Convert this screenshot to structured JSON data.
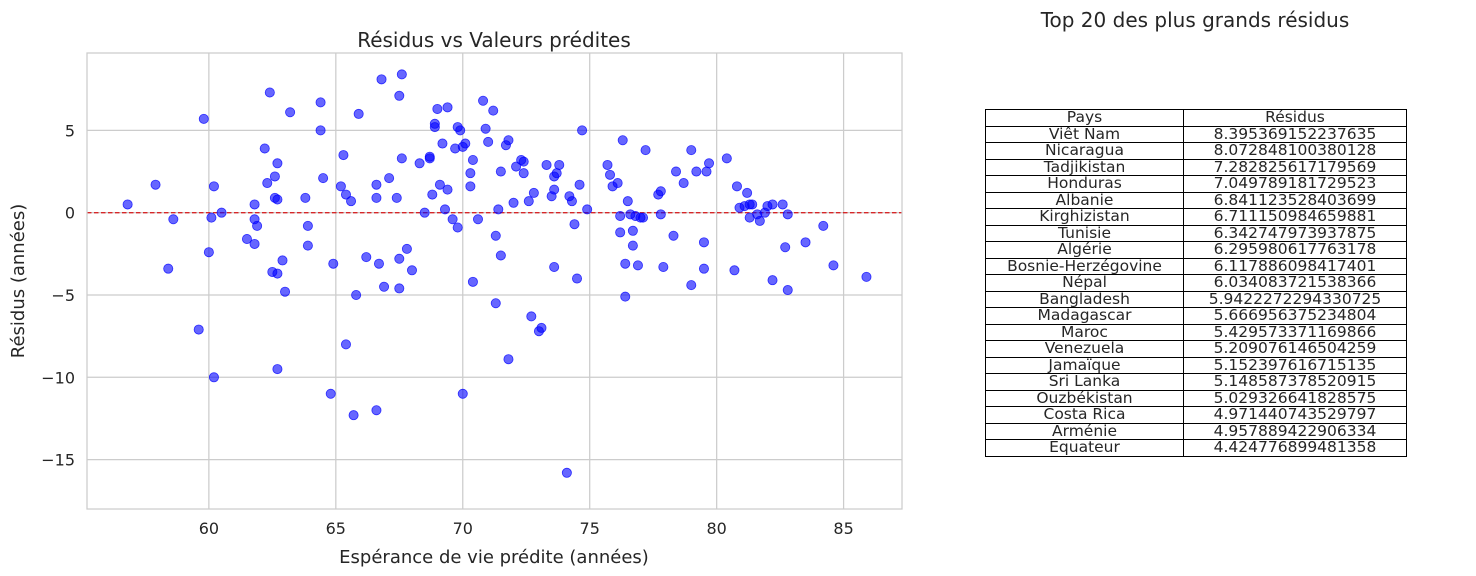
{
  "chart_data": [
    {
      "type": "scatter",
      "title": "Résidus vs Valeurs prédites",
      "xlabel": "Espérance de vie prédite (années)",
      "ylabel": "Résidus (années)",
      "xlim": [
        55.2,
        87.3
      ],
      "ylim": [
        -18.0,
        9.7
      ],
      "xticks": [
        60,
        65,
        70,
        75,
        80,
        85
      ],
      "yticks": [
        5,
        0,
        -5,
        -10,
        -15
      ],
      "ytick_labels": [
        "5",
        "0",
        "−5",
        "−10",
        "−15"
      ],
      "grid": true,
      "point_color": "#0000ff",
      "reference_line": {
        "y": 0,
        "color": "#d62728",
        "style": "dashed"
      },
      "points": [
        [
          56.8,
          0.5
        ],
        [
          57.9,
          1.7
        ],
        [
          58.4,
          -3.4
        ],
        [
          58.6,
          -0.4
        ],
        [
          59.6,
          -7.1
        ],
        [
          59.8,
          5.7
        ],
        [
          60.0,
          -2.4
        ],
        [
          60.1,
          -0.3
        ],
        [
          60.2,
          1.6
        ],
        [
          60.2,
          -10.0
        ],
        [
          60.5,
          0.0
        ],
        [
          61.5,
          -1.6
        ],
        [
          61.8,
          0.5
        ],
        [
          61.8,
          -0.4
        ],
        [
          61.8,
          -1.9
        ],
        [
          61.9,
          -0.8
        ],
        [
          62.2,
          3.9
        ],
        [
          62.3,
          1.8
        ],
        [
          62.4,
          7.3
        ],
        [
          62.5,
          -3.6
        ],
        [
          62.6,
          2.2
        ],
        [
          62.6,
          0.9
        ],
        [
          62.7,
          0.8
        ],
        [
          62.7,
          3.0
        ],
        [
          62.7,
          -3.7
        ],
        [
          62.7,
          -9.5
        ],
        [
          62.9,
          -2.9
        ],
        [
          63.0,
          -4.8
        ],
        [
          63.2,
          6.1
        ],
        [
          63.8,
          0.9
        ],
        [
          63.9,
          -0.8
        ],
        [
          63.9,
          -2.0
        ],
        [
          64.4,
          6.7
        ],
        [
          64.4,
          5.0
        ],
        [
          64.5,
          2.1
        ],
        [
          64.8,
          -11.0
        ],
        [
          64.9,
          -3.1
        ],
        [
          65.2,
          1.6
        ],
        [
          65.3,
          3.5
        ],
        [
          65.4,
          1.1
        ],
        [
          65.4,
          -8.0
        ],
        [
          65.6,
          0.7
        ],
        [
          65.7,
          -12.3
        ],
        [
          65.8,
          -5.0
        ],
        [
          65.9,
          6.0
        ],
        [
          66.2,
          -2.7
        ],
        [
          66.6,
          1.7
        ],
        [
          66.6,
          0.9
        ],
        [
          66.6,
          -12.0
        ],
        [
          66.7,
          -3.1
        ],
        [
          66.8,
          8.1
        ],
        [
          66.9,
          -4.5
        ],
        [
          67.1,
          2.1
        ],
        [
          67.4,
          0.9
        ],
        [
          67.5,
          -2.8
        ],
        [
          67.5,
          -4.6
        ],
        [
          67.5,
          7.1
        ],
        [
          67.6,
          8.4
        ],
        [
          67.6,
          3.3
        ],
        [
          67.8,
          -2.2
        ],
        [
          68.0,
          -3.5
        ],
        [
          68.3,
          3.0
        ],
        [
          68.5,
          0.0
        ],
        [
          68.7,
          3.4
        ],
        [
          68.7,
          3.3
        ],
        [
          68.8,
          1.1
        ],
        [
          68.9,
          5.2
        ],
        [
          68.9,
          5.4
        ],
        [
          69.0,
          6.3
        ],
        [
          69.1,
          1.7
        ],
        [
          69.2,
          4.2
        ],
        [
          69.3,
          0.2
        ],
        [
          69.4,
          6.4
        ],
        [
          69.4,
          1.4
        ],
        [
          69.6,
          -0.4
        ],
        [
          69.7,
          3.9
        ],
        [
          69.8,
          -0.9
        ],
        [
          69.8,
          5.2
        ],
        [
          69.9,
          5.0
        ],
        [
          70.0,
          -11.0
        ],
        [
          70.0,
          4.0
        ],
        [
          70.1,
          4.2
        ],
        [
          70.3,
          1.6
        ],
        [
          70.3,
          2.4
        ],
        [
          70.4,
          3.2
        ],
        [
          70.4,
          -4.2
        ],
        [
          70.6,
          -0.4
        ],
        [
          70.8,
          6.8
        ],
        [
          70.9,
          5.1
        ],
        [
          71.0,
          4.3
        ],
        [
          71.2,
          6.2
        ],
        [
          71.3,
          -5.5
        ],
        [
          71.3,
          -1.4
        ],
        [
          71.4,
          0.2
        ],
        [
          71.5,
          2.5
        ],
        [
          71.5,
          -2.6
        ],
        [
          71.7,
          4.1
        ],
        [
          71.8,
          4.4
        ],
        [
          71.8,
          -8.9
        ],
        [
          72.0,
          0.6
        ],
        [
          72.1,
          2.8
        ],
        [
          72.3,
          3.2
        ],
        [
          72.4,
          3.1
        ],
        [
          72.4,
          2.4
        ],
        [
          72.6,
          0.7
        ],
        [
          72.7,
          -6.3
        ],
        [
          72.8,
          1.2
        ],
        [
          73.0,
          -7.2
        ],
        [
          73.1,
          -7.0
        ],
        [
          73.3,
          2.9
        ],
        [
          73.5,
          1.0
        ],
        [
          73.6,
          -3.3
        ],
        [
          73.6,
          1.4
        ],
        [
          73.6,
          2.2
        ],
        [
          73.7,
          2.4
        ],
        [
          73.8,
          2.9
        ],
        [
          74.1,
          -15.8
        ],
        [
          74.2,
          1.0
        ],
        [
          74.3,
          0.7
        ],
        [
          74.4,
          -0.7
        ],
        [
          74.5,
          -4.0
        ],
        [
          74.6,
          1.7
        ],
        [
          74.7,
          5.0
        ],
        [
          74.9,
          0.2
        ],
        [
          75.7,
          2.9
        ],
        [
          75.8,
          2.3
        ],
        [
          75.9,
          1.6
        ],
        [
          76.1,
          1.8
        ],
        [
          76.2,
          -0.2
        ],
        [
          76.2,
          -1.2
        ],
        [
          76.3,
          4.4
        ],
        [
          76.4,
          -5.1
        ],
        [
          76.4,
          -3.1
        ],
        [
          76.5,
          0.7
        ],
        [
          76.6,
          -0.1
        ],
        [
          76.7,
          -1.1
        ],
        [
          76.7,
          -2.0
        ],
        [
          76.8,
          -0.2
        ],
        [
          76.9,
          -3.2
        ],
        [
          77.0,
          -0.3
        ],
        [
          77.1,
          -0.3
        ],
        [
          77.2,
          3.8
        ],
        [
          77.7,
          1.1
        ],
        [
          77.8,
          1.3
        ],
        [
          77.8,
          -0.1
        ],
        [
          77.9,
          -3.3
        ],
        [
          78.3,
          -1.4
        ],
        [
          78.4,
          2.5
        ],
        [
          78.7,
          1.8
        ],
        [
          79.0,
          3.8
        ],
        [
          79.0,
          -4.4
        ],
        [
          79.2,
          2.5
        ],
        [
          79.5,
          -3.4
        ],
        [
          79.5,
          -1.8
        ],
        [
          79.6,
          2.5
        ],
        [
          79.7,
          3.0
        ],
        [
          80.4,
          3.3
        ],
        [
          80.7,
          -3.5
        ],
        [
          80.8,
          1.6
        ],
        [
          80.9,
          0.3
        ],
        [
          81.1,
          0.4
        ],
        [
          81.2,
          1.2
        ],
        [
          81.3,
          0.5
        ],
        [
          81.3,
          -0.3
        ],
        [
          81.4,
          0.5
        ],
        [
          81.6,
          -0.1
        ],
        [
          81.7,
          -0.5
        ],
        [
          81.9,
          0.0
        ],
        [
          82.0,
          0.4
        ],
        [
          82.2,
          -4.1
        ],
        [
          82.2,
          0.5
        ],
        [
          82.6,
          0.5
        ],
        [
          82.7,
          -2.1
        ],
        [
          82.8,
          -0.1
        ],
        [
          82.8,
          -4.7
        ],
        [
          83.5,
          -1.8
        ],
        [
          84.2,
          -0.8
        ],
        [
          84.6,
          -3.2
        ],
        [
          85.9,
          -3.9
        ]
      ]
    },
    {
      "type": "table",
      "title": "Top 20 des plus grands résidus",
      "columns": [
        "Pays",
        "Résidus"
      ],
      "rows": [
        [
          "Viêt Nam",
          "8.395369152237635"
        ],
        [
          "Nicaragua",
          "8.072848100380128"
        ],
        [
          "Tadjikistan",
          "7.282825617179569"
        ],
        [
          "Honduras",
          "7.049789181729523"
        ],
        [
          "Albanie",
          "6.841123528403699"
        ],
        [
          "Kirghizistan",
          "6.711150984659881"
        ],
        [
          "Tunisie",
          "6.342747973937875"
        ],
        [
          "Algérie",
          "6.295980617763178"
        ],
        [
          "Bosnie-Herzégovine",
          "6.117886098417401"
        ],
        [
          "Népal",
          "6.034083721538366"
        ],
        [
          "Bangladesh",
          "5.9422272294330725"
        ],
        [
          "Madagascar",
          "5.666956375234804"
        ],
        [
          "Maroc",
          "5.429573371169866"
        ],
        [
          "Venezuela",
          "5.209076146504259"
        ],
        [
          "Jamaïque",
          "5.152397616715135"
        ],
        [
          "Sri Lanka",
          "5.148587378520915"
        ],
        [
          "Ouzbékistan",
          "5.029326641828575"
        ],
        [
          "Costa Rica",
          "4.971440743529797"
        ],
        [
          "Arménie",
          "4.957889422906334"
        ],
        [
          "Équateur",
          "4.424776899481358"
        ]
      ]
    }
  ]
}
